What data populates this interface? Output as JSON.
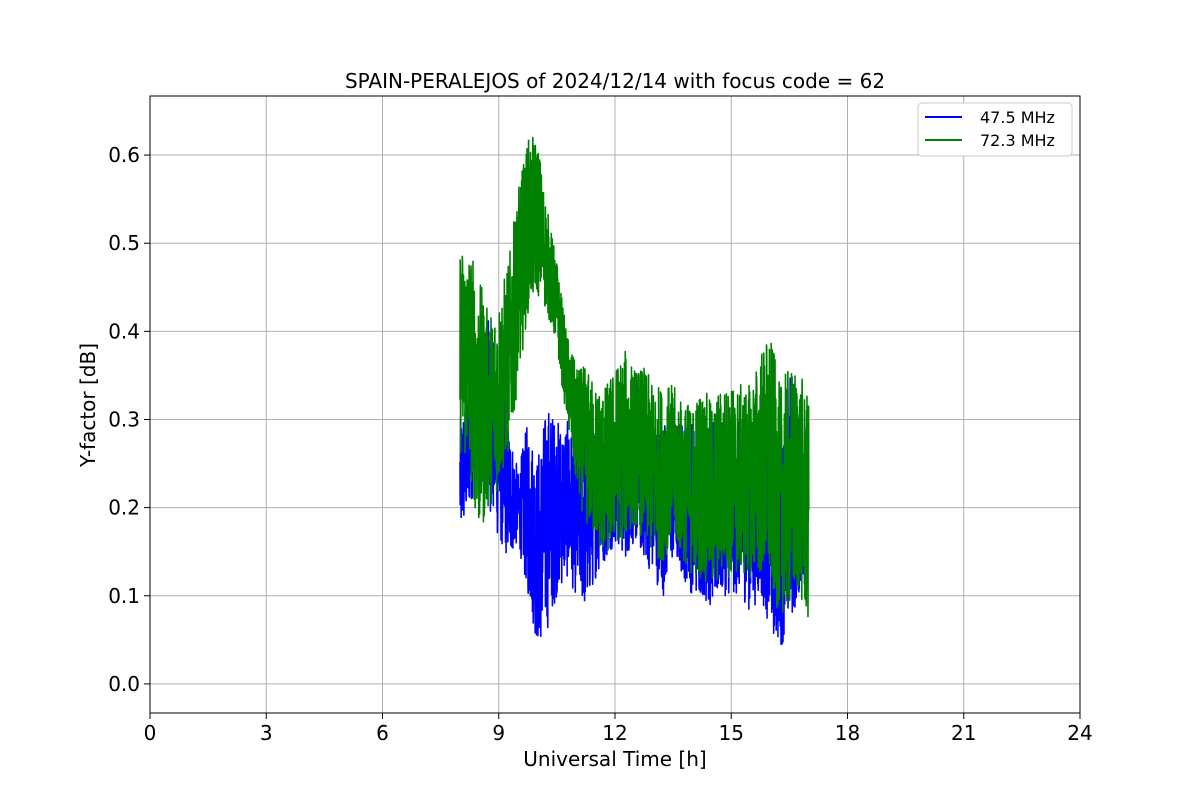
{
  "chart_data": {
    "type": "line",
    "title": "SPAIN-PERALEJOS of 2024/12/14 with focus code = 62",
    "xlabel": "Universal Time [h]",
    "ylabel": "Y-factor [dB]",
    "xlim": [
      0,
      24
    ],
    "ylim": [
      -0.033,
      0.667
    ],
    "xticks": [
      0,
      3,
      6,
      9,
      12,
      15,
      18,
      21,
      24
    ],
    "yticks": [
      0.0,
      0.1,
      0.2,
      0.3,
      0.4,
      0.5,
      0.6
    ],
    "xtick_labels": [
      "0",
      "3",
      "6",
      "9",
      "12",
      "15",
      "18",
      "21",
      "24"
    ],
    "ytick_labels": [
      "0.0",
      "0.1",
      "0.2",
      "0.3",
      "0.4",
      "0.5",
      "0.6"
    ],
    "grid": true,
    "legend": "top-right",
    "series": [
      {
        "name": "47.5 MHz",
        "color": "#0000ff",
        "x": [
          8.0,
          8.25,
          8.5,
          8.75,
          9.0,
          9.25,
          9.5,
          9.75,
          10.0,
          10.25,
          10.5,
          10.75,
          11.0,
          11.25,
          11.5,
          11.75,
          12.0,
          12.25,
          12.5,
          12.75,
          13.0,
          13.25,
          13.5,
          13.75,
          14.0,
          14.25,
          14.5,
          14.75,
          15.0,
          15.25,
          15.5,
          15.75,
          16.0,
          16.25,
          16.5,
          16.75,
          17.0
        ],
        "low": [
          0.16,
          0.2,
          0.24,
          0.2,
          0.16,
          0.14,
          0.16,
          0.1,
          0.04,
          0.06,
          0.1,
          0.12,
          0.1,
          0.08,
          0.12,
          0.14,
          0.16,
          0.14,
          0.16,
          0.14,
          0.12,
          0.1,
          0.14,
          0.12,
          0.1,
          0.1,
          0.08,
          0.1,
          0.1,
          0.1,
          0.08,
          0.1,
          0.06,
          0.04,
          0.06,
          0.1,
          0.12
        ],
        "high": [
          0.3,
          0.34,
          0.4,
          0.42,
          0.36,
          0.3,
          0.24,
          0.3,
          0.26,
          0.32,
          0.3,
          0.3,
          0.28,
          0.3,
          0.3,
          0.28,
          0.3,
          0.3,
          0.32,
          0.32,
          0.3,
          0.3,
          0.3,
          0.3,
          0.3,
          0.28,
          0.3,
          0.28,
          0.3,
          0.3,
          0.28,
          0.28,
          0.3,
          0.26,
          0.36,
          0.3,
          0.3
        ]
      },
      {
        "name": "72.3 MHz",
        "color": "#008000",
        "x": [
          8.0,
          8.25,
          8.5,
          8.75,
          9.0,
          9.25,
          9.5,
          9.75,
          10.0,
          10.25,
          10.5,
          10.75,
          11.0,
          11.25,
          11.5,
          11.75,
          12.0,
          12.25,
          12.5,
          12.75,
          13.0,
          13.25,
          13.5,
          13.75,
          14.0,
          14.25,
          14.5,
          14.75,
          15.0,
          15.25,
          15.5,
          15.75,
          16.0,
          16.25,
          16.5,
          16.75,
          17.0
        ],
        "low": [
          0.26,
          0.24,
          0.16,
          0.2,
          0.22,
          0.26,
          0.34,
          0.42,
          0.44,
          0.42,
          0.38,
          0.3,
          0.22,
          0.18,
          0.16,
          0.14,
          0.16,
          0.16,
          0.18,
          0.16,
          0.14,
          0.14,
          0.16,
          0.14,
          0.12,
          0.12,
          0.1,
          0.12,
          0.12,
          0.12,
          0.12,
          0.12,
          0.1,
          0.08,
          0.08,
          0.1,
          0.06
        ],
        "high": [
          0.5,
          0.5,
          0.46,
          0.42,
          0.44,
          0.48,
          0.56,
          0.62,
          0.62,
          0.54,
          0.48,
          0.4,
          0.36,
          0.36,
          0.34,
          0.34,
          0.36,
          0.38,
          0.36,
          0.36,
          0.34,
          0.34,
          0.34,
          0.32,
          0.32,
          0.34,
          0.32,
          0.34,
          0.34,
          0.34,
          0.34,
          0.38,
          0.4,
          0.34,
          0.36,
          0.36,
          0.32
        ]
      }
    ]
  }
}
